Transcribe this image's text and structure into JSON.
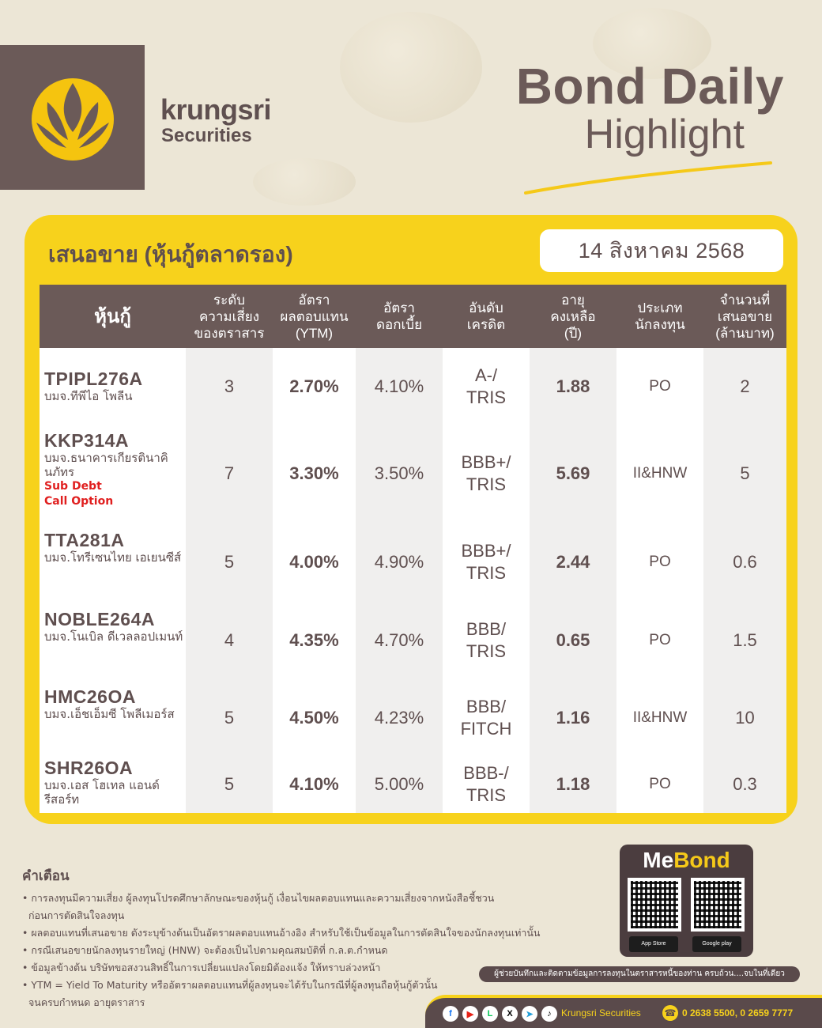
{
  "brand": {
    "name": "krungsri",
    "sub": "Securities"
  },
  "title": {
    "main": "Bond Daily",
    "sub": "Highlight"
  },
  "panel": {
    "title": "เสนอขาย (หุ้นกู้ตลาดรอง)",
    "date": "14 สิงหาคม 2568"
  },
  "table": {
    "headers": [
      "หุ้นกู้",
      "ระดับ\nความเสี่ยง\nของตราสาร",
      "อัตรา\nผลตอบแทน\n(YTM)",
      "อัตรา\nดอกเบี้ย",
      "อันดับ\nเครดิต",
      "อายุ\nคงเหลือ\n(ปี)",
      "ประเภท\nนักลงทุน",
      "จำนวนที่\nเสนอขาย\n(ล้านบาท)"
    ],
    "rows": [
      {
        "code": "TPIPL276A",
        "issuer": "บมจ.ทีพีไอ โพลีน",
        "notes": [],
        "risk": "3",
        "ytm": "2.70%",
        "coupon": "4.10%",
        "rating": "A-/\nTRIS",
        "term": "1.88",
        "investor": "PO",
        "amount": "2"
      },
      {
        "code": "KKP314A",
        "issuer": "บมจ.ธนาคารเกียรตินาคินภัทร",
        "notes": [
          "Sub Debt",
          "Call Option"
        ],
        "risk": "7",
        "ytm": "3.30%",
        "coupon": "3.50%",
        "rating": "BBB+/\nTRIS",
        "term": "5.69",
        "investor": "II&HNW",
        "amount": "5"
      },
      {
        "code": "TTA281A",
        "issuer": "บมจ.โทรีเซนไทย เอเยนซีส์",
        "notes": [],
        "risk": "5",
        "ytm": "4.00%",
        "coupon": "4.90%",
        "rating": "BBB+/\nTRIS",
        "term": "2.44",
        "investor": "PO",
        "amount": "0.6"
      },
      {
        "code": "NOBLE264A",
        "issuer": "บมจ.โนเบิล ดีเวลลอปเมนท์",
        "notes": [],
        "risk": "4",
        "ytm": "4.35%",
        "coupon": "4.70%",
        "rating": "BBB/\nTRIS",
        "term": "0.65",
        "investor": "PO",
        "amount": "1.5"
      },
      {
        "code": "HMC26OA",
        "issuer": "บมจ.เอ็ชเอ็มซี โพลีเมอร์ส",
        "notes": [],
        "risk": "5",
        "ytm": "4.50%",
        "coupon": "4.23%",
        "rating": "BBB/\nFITCH",
        "term": "1.16",
        "investor": "II&HNW",
        "amount": "10"
      },
      {
        "code": "SHR26OA",
        "issuer": "บมจ.เอส โฮเทล แอนด์ รีสอร์ท",
        "notes": [],
        "risk": "5",
        "ytm": "4.10%",
        "coupon": "5.00%",
        "rating": "BBB-/\nTRIS",
        "term": "1.18",
        "investor": "PO",
        "amount": "0.3"
      }
    ]
  },
  "warning": {
    "title": "คำเตือน",
    "items": [
      "• การลงทุนมีความเสี่ยง ผู้ลงทุนโปรดศึกษาลักษณะของหุ้นกู้ เงื่อนไขผลตอบแทนและความเสี่ยงจากหนังสือชี้ชวน",
      "  ก่อนการตัดสินใจลงทุน",
      "• ผลตอบแทนที่เสนอขาย ดังระบุข้างต้นเป็นอัตราผลตอบแทนอ้างอิง สำหรับใช้เป็นข้อมูลในการตัดสินใจของนักลงทุนเท่านั้น",
      "• กรณีเสนอขายนักลงทุนรายใหญ่ (HNW) จะต้องเป็นไปตามคุณสมบัติที่ ก.ล.ต.กำหนด",
      "• ข้อมูลข้างต้น บริษัทขอสงวนสิทธิ์ในการเปลี่ยนแปลงโดยมิต้องแจ้ง ให้ทราบล่วงหน้า",
      "• YTM = Yield To Maturity หรืออัตราผลตอบแทนที่ผู้ลงทุนจะได้รับในกรณีที่ผู้ลงทุนถือหุ้นกู้ตัวนั้น",
      "  จนครบกำหนด อายุตราสาร"
    ]
  },
  "app": {
    "name_me": "Me",
    "name_bond": "Bond",
    "app_store": "App Store",
    "google_play": "Google play",
    "slogan": "ผู้ช่วยบันทึกและติดตามข้อมูลการลงทุนในตราสารหนี้ของท่าน ครบถ้วน....จบในที่เดียว"
  },
  "footer": {
    "social": [
      "f",
      "▶",
      "L",
      "X",
      "➤",
      "♪"
    ],
    "brand": "Krungsri Securities",
    "phone": "0 2638 5500, 0 2659 7777"
  },
  "colors": {
    "panel_yellow": "#f7d21c",
    "brown": "#6b5a58",
    "red_tag": "#e01f1f"
  }
}
